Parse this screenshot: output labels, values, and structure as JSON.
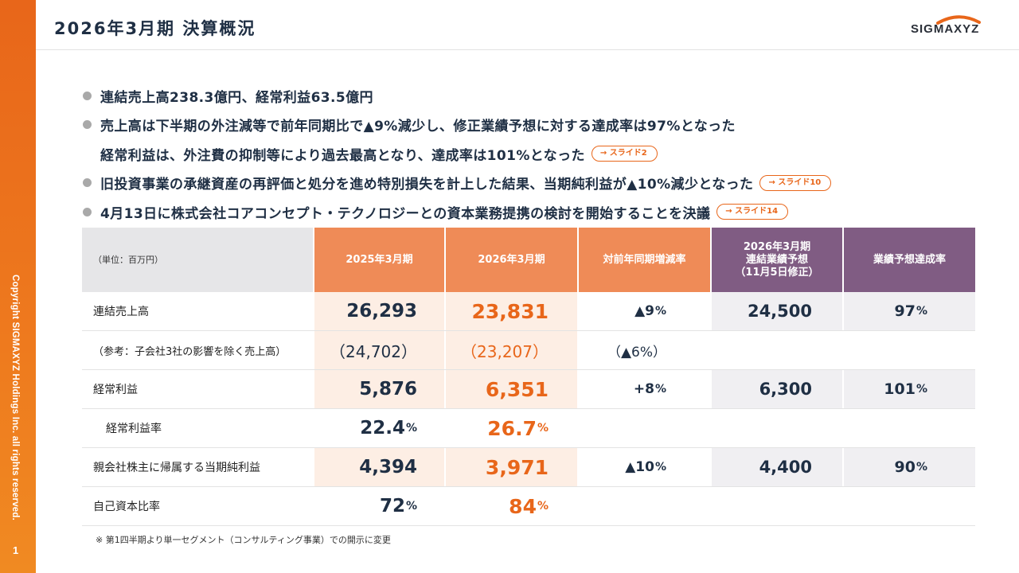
{
  "header": {
    "title": "2026年3月期 決算概況",
    "logo_text": "SIGMAXYZ"
  },
  "sidebar": {
    "copyright": "Copyright SIGMAXYZ Holdings Inc. all rights reserved.",
    "page_number": "1"
  },
  "bullets": [
    {
      "text": "連結売上高238.3億円、経常利益63.5億円"
    },
    {
      "text": "売上高は下半期の外注減等で前年同期比で▲9%減少し、修正業績予想に対する達成率は97%となった"
    },
    {
      "text": "経常利益は、外注費の抑制等により過去最高となり、達成率は101%となった",
      "link": "→ スライド2"
    },
    {
      "text": "旧投資事業の承継資産の再評価と処分を進め特別損失を計上した結果、当期純利益が▲10%減少となった",
      "link": "→ スライド10"
    },
    {
      "text": "4月13日に株式会社コアコンセプト・テクノロジーとの資本業務提携の検討を開始することを決議",
      "link": "→ スライド14"
    }
  ],
  "table": {
    "unit": "（単位：百万円）",
    "headers": {
      "fy2025": "2025年3月期",
      "fy2026": "2026年3月期",
      "yoy": "対前年同期増減率",
      "forecast_l1": "2026年3月期",
      "forecast_l2": "連結業績予想",
      "forecast_l3": "（11月5日修正）",
      "achievement": "業績予想達成率"
    },
    "colors": {
      "orange": "#ef8b57",
      "orange_dark": "#e8661a",
      "purple": "#805c83",
      "light": "#fdeee4"
    },
    "rows": [
      {
        "label": "連結売上高",
        "fy2025": "26,293",
        "fy2026": "23,831",
        "yoy": "▲9",
        "yoy_unit": "%",
        "forecast": "24,500",
        "achievement": "97",
        "ach_unit": "%"
      },
      {
        "label": "（参考：子会社3社の影響を除く売上高）",
        "fy2025": "（24,702）",
        "fy2026": "（23,207）",
        "yoy": "（▲6%）"
      },
      {
        "label": "経常利益",
        "fy2025": "5,876",
        "fy2026": "6,351",
        "yoy": "+8",
        "yoy_unit": "%",
        "forecast": "6,300",
        "achievement": "101",
        "ach_unit": "%"
      },
      {
        "label": "経常利益率",
        "fy2025": "22.4",
        "fy2025_unit": "%",
        "fy2026": "26.7",
        "fy2026_unit": "%"
      },
      {
        "label": "親会社株主に帰属する当期純利益",
        "fy2025": "4,394",
        "fy2026": "3,971",
        "yoy": "▲10",
        "yoy_unit": "%",
        "forecast": "4,400",
        "achievement": "90",
        "ach_unit": "%"
      },
      {
        "label": "自己資本比率",
        "fy2025": "72",
        "fy2025_unit": "%",
        "fy2026": "84",
        "fy2026_unit": "%"
      }
    ],
    "footnote": "※  第1四半期より単一セグメント（コンサルティング事業）での開示に変更"
  }
}
